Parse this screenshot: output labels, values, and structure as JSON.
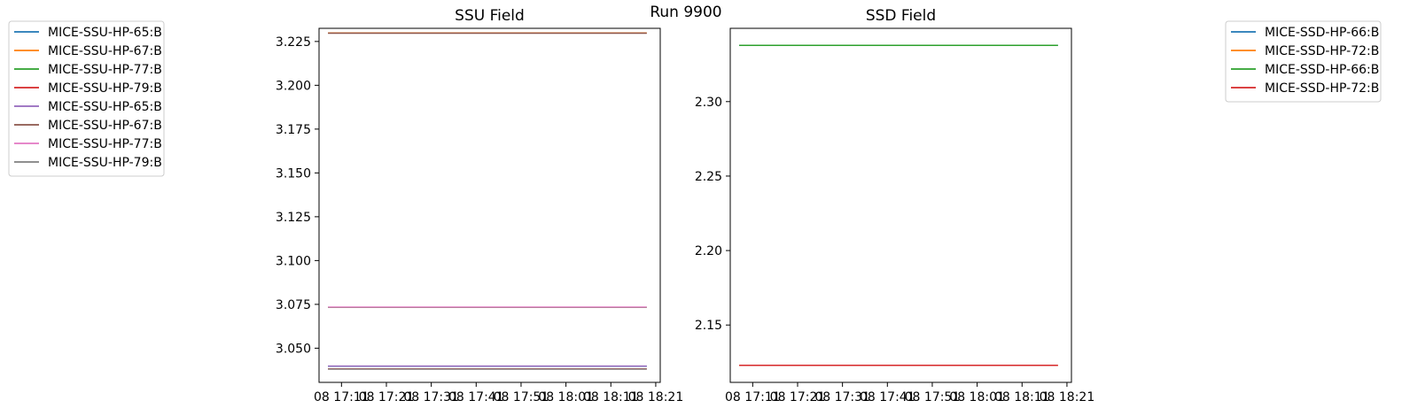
{
  "figure": {
    "suptitle": "Run 9900"
  },
  "chart_data": [
    {
      "type": "line",
      "title": "SSU Field",
      "xlabel": "",
      "ylabel": "",
      "xlim": [
        "08 17:06",
        "08 18:22"
      ],
      "ylim": [
        3.0305,
        3.2325
      ],
      "x_ticks": [
        "08 17:11",
        "08 17:21",
        "08 17:31",
        "08 17:41",
        "08 17:51",
        "08 18:01",
        "08 18:11",
        "08 18:21"
      ],
      "y_ticks": [
        3.05,
        3.075,
        3.1,
        3.125,
        3.15,
        3.175,
        3.2,
        3.225
      ],
      "y_tick_labels": [
        "3.050",
        "3.075",
        "3.100",
        "3.125",
        "3.150",
        "3.175",
        "3.200",
        "3.225"
      ],
      "legend_position": "outside-left",
      "grid": false,
      "series": [
        {
          "name": "MICE-SSU-HP-65:B",
          "color": "#1f77b4",
          "x": [
            "08 17:08",
            "08 18:19"
          ],
          "values": [
            3.0397,
            3.0397
          ]
        },
        {
          "name": "MICE-SSU-HP-67:B",
          "color": "#ff7f0e",
          "x": [
            "08 17:08",
            "08 18:19"
          ],
          "values": [
            3.2298,
            3.2298
          ]
        },
        {
          "name": "MICE-SSU-HP-77:B",
          "color": "#2ca02c",
          "x": [
            "08 17:08",
            "08 18:19"
          ],
          "values": [
            3.0733,
            3.0733
          ]
        },
        {
          "name": "MICE-SSU-HP-79:B",
          "color": "#d62728",
          "x": [
            "08 17:08",
            "08 18:19"
          ],
          "values": [
            3.0382,
            3.0382
          ]
        },
        {
          "name": "MICE-SSU-HP-65:B",
          "color": "#9467bd",
          "x": [
            "08 17:08",
            "08 18:19"
          ],
          "values": [
            3.0398,
            3.0398
          ]
        },
        {
          "name": "MICE-SSU-HP-67:B",
          "color": "#8c564b",
          "x": [
            "08 17:08",
            "08 18:19"
          ],
          "values": [
            3.2297,
            3.2297
          ]
        },
        {
          "name": "MICE-SSU-HP-77:B",
          "color": "#e377c2",
          "x": [
            "08 17:08",
            "08 18:19"
          ],
          "values": [
            3.0734,
            3.0734
          ]
        },
        {
          "name": "MICE-SSU-HP-79:B",
          "color": "#7f7f7f",
          "x": [
            "08 17:08",
            "08 18:19"
          ],
          "values": [
            3.0381,
            3.0381
          ]
        }
      ]
    },
    {
      "type": "line",
      "title": "SSD Field",
      "xlabel": "",
      "ylabel": "",
      "xlim": [
        "08 17:06",
        "08 18:22"
      ],
      "ylim": [
        2.1115,
        2.3492
      ],
      "x_ticks": [
        "08 17:11",
        "08 17:21",
        "08 17:31",
        "08 17:41",
        "08 17:51",
        "08 18:01",
        "08 18:11",
        "08 18:21"
      ],
      "y_ticks": [
        2.15,
        2.2,
        2.25,
        2.3
      ],
      "y_tick_labels": [
        "2.15",
        "2.20",
        "2.25",
        "2.30"
      ],
      "legend_position": "outside-right",
      "grid": false,
      "series": [
        {
          "name": "MICE-SSD-HP-66:B",
          "color": "#1f77b4",
          "x": [
            "08 17:08",
            "08 18:19"
          ],
          "values": [
            2.3378,
            2.3378
          ]
        },
        {
          "name": "MICE-SSD-HP-72:B",
          "color": "#ff7f0e",
          "x": [
            "08 17:08",
            "08 18:19"
          ],
          "values": [
            2.1229,
            2.1229
          ]
        },
        {
          "name": "MICE-SSD-HP-66:B",
          "color": "#2ca02c",
          "x": [
            "08 17:08",
            "08 18:19"
          ],
          "values": [
            2.3378,
            2.3378
          ]
        },
        {
          "name": "MICE-SSD-HP-72:B",
          "color": "#d62728",
          "x": [
            "08 17:08",
            "08 18:19"
          ],
          "values": [
            2.1229,
            2.1229
          ]
        }
      ]
    }
  ]
}
